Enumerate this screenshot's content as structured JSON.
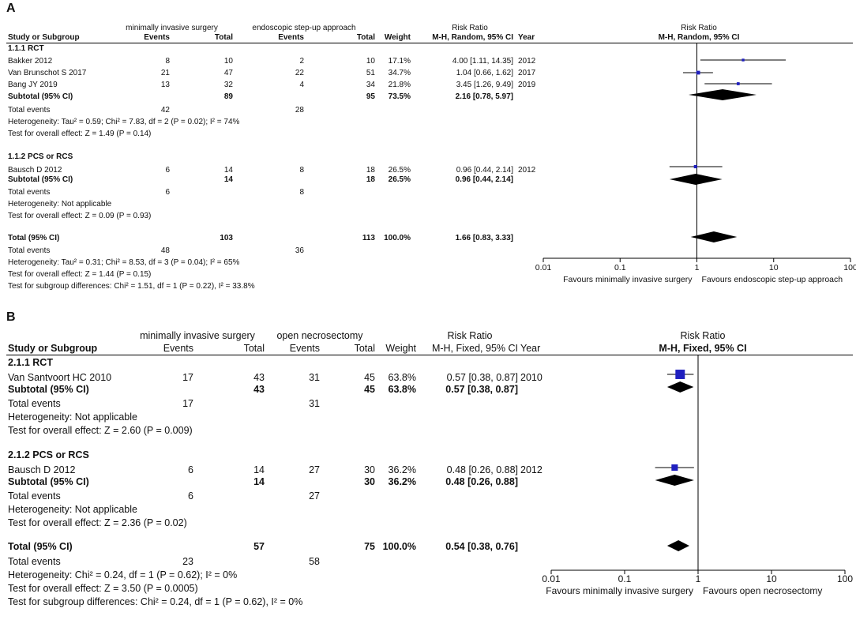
{
  "chart_data": [
    {
      "type": "forest",
      "panel_label": "A",
      "experimental_label": "minimally invasive surgery",
      "control_label": "endoscopic step-up approach",
      "columns": {
        "study": "Study or Subgroup",
        "events": "Events",
        "total": "Total",
        "weight": "Weight",
        "effect_title": "Risk Ratio",
        "effect_method": "M-H, Random, 95% CI",
        "year": "Year"
      },
      "plot_title": "Risk Ratio",
      "plot_method": "M-H, Random, 95% CI",
      "axis": {
        "scale": "log",
        "min": 0.01,
        "max": 100,
        "ticks": [
          "0.01",
          "0.1",
          "1",
          "10",
          "100"
        ]
      },
      "favours_left": "Favours minimally invasive surgery",
      "favours_right": "Favours endoscopic step-up approach",
      "subgroups": [
        {
          "name": "1.1.1 RCT",
          "studies": [
            {
              "name": "Bakker 2012",
              "e_events": "8",
              "e_total": "10",
              "c_events": "2",
              "c_total": "10",
              "weight": "17.1%",
              "ci_text": "4.00 [1.11, 14.35]",
              "year": "2012",
              "rr": 4.0,
              "lo": 1.11,
              "hi": 14.35
            },
            {
              "name": "Van Brunschot S 2017",
              "e_events": "21",
              "e_total": "47",
              "c_events": "22",
              "c_total": "51",
              "weight": "34.7%",
              "ci_text": "1.04 [0.66, 1.62]",
              "year": "2017",
              "rr": 1.04,
              "lo": 0.66,
              "hi": 1.62
            },
            {
              "name": "Bang JY 2019",
              "e_events": "13",
              "e_total": "32",
              "c_events": "4",
              "c_total": "34",
              "weight": "21.8%",
              "ci_text": "3.45 [1.26, 9.49]",
              "year": "2019",
              "rr": 3.45,
              "lo": 1.26,
              "hi": 9.49
            }
          ],
          "subtotal": {
            "label": "Subtotal (95% CI)",
            "e_total": "89",
            "c_total": "95",
            "weight": "73.5%",
            "ci_text": "2.16 [0.78, 5.97]",
            "rr": 2.16,
            "lo": 0.78,
            "hi": 5.97
          },
          "total_events": {
            "label": "Total events",
            "e": "42",
            "c": "28"
          },
          "heterogeneity": "Heterogeneity: Tau² = 0.59; Chi² = 7.83, df = 2 (P = 0.02); I² = 74%",
          "overall_effect": "Test for overall effect: Z = 1.49 (P = 0.14)"
        },
        {
          "name": "1.1.2 PCS or RCS",
          "studies": [
            {
              "name": "Bausch D  2012",
              "e_events": "6",
              "e_total": "14",
              "c_events": "8",
              "c_total": "18",
              "weight": "26.5%",
              "ci_text": "0.96 [0.44, 2.14]",
              "year": "2012",
              "rr": 0.96,
              "lo": 0.44,
              "hi": 2.14
            }
          ],
          "subtotal": {
            "label": "Subtotal (95% CI)",
            "e_total": "14",
            "c_total": "18",
            "weight": "26.5%",
            "ci_text": "0.96 [0.44, 2.14]",
            "rr": 0.96,
            "lo": 0.44,
            "hi": 2.14
          },
          "total_events": {
            "label": "Total events",
            "e": "6",
            "c": "8"
          },
          "heterogeneity": "Heterogeneity: Not applicable",
          "overall_effect": "Test for overall effect: Z = 0.09 (P = 0.93)"
        }
      ],
      "total": {
        "label": "Total (95% CI)",
        "e_total": "103",
        "c_total": "113",
        "weight": "100.0%",
        "ci_text": "1.66 [0.83, 3.33]",
        "rr": 1.66,
        "lo": 0.83,
        "hi": 3.33
      },
      "total_events": {
        "label": "Total events",
        "e": "48",
        "c": "36"
      },
      "heterogeneity": "Heterogeneity: Tau² = 0.31; Chi² = 8.53, df = 3 (P = 0.04); I² = 65%",
      "overall_effect": "Test for overall effect: Z = 1.44 (P = 0.15)",
      "subgroup_differences": "Test for subgroup differences: Chi² = 1.51, df = 1 (P = 0.22), I² = 33.8%"
    },
    {
      "type": "forest",
      "panel_label": "B",
      "experimental_label": "minimally invasive surgery",
      "control_label": "open necrosectomy",
      "columns": {
        "study": "Study or Subgroup",
        "events": "Events",
        "total": "Total",
        "weight": "Weight",
        "effect_title": "Risk Ratio",
        "effect_method": "M-H, Fixed, 95% CI",
        "year": "Year"
      },
      "plot_title": "Risk Ratio",
      "plot_method": "M-H, Fixed, 95% CI",
      "axis": {
        "scale": "log",
        "min": 0.01,
        "max": 100,
        "ticks": [
          "0.01",
          "0.1",
          "1",
          "10",
          "100"
        ]
      },
      "favours_left": "Favours minimally invasive surgery",
      "favours_right": "Favours open necrosectomy",
      "subgroups": [
        {
          "name": "2.1.1 RCT",
          "studies": [
            {
              "name": "Van Santvoort HC 2010",
              "e_events": "17",
              "e_total": "43",
              "c_events": "31",
              "c_total": "45",
              "weight": "63.8%",
              "ci_text": "0.57 [0.38, 0.87]",
              "year": "2010",
              "rr": 0.57,
              "lo": 0.38,
              "hi": 0.87
            }
          ],
          "subtotal": {
            "label": "Subtotal (95% CI)",
            "e_total": "43",
            "c_total": "45",
            "weight": "63.8%",
            "ci_text": "0.57 [0.38, 0.87]",
            "rr": 0.57,
            "lo": 0.38,
            "hi": 0.87
          },
          "total_events": {
            "label": "Total events",
            "e": "17",
            "c": "31"
          },
          "heterogeneity": "Heterogeneity: Not applicable",
          "overall_effect": "Test for overall effect: Z = 2.60 (P = 0.009)"
        },
        {
          "name": "2.1.2 PCS or RCS",
          "studies": [
            {
              "name": "Bausch D  2012",
              "e_events": "6",
              "e_total": "14",
              "c_events": "27",
              "c_total": "30",
              "weight": "36.2%",
              "ci_text": "0.48 [0.26, 0.88]",
              "year": "2012",
              "rr": 0.48,
              "lo": 0.26,
              "hi": 0.88
            }
          ],
          "subtotal": {
            "label": "Subtotal (95% CI)",
            "e_total": "14",
            "c_total": "30",
            "weight": "36.2%",
            "ci_text": "0.48 [0.26, 0.88]",
            "rr": 0.48,
            "lo": 0.26,
            "hi": 0.88
          },
          "total_events": {
            "label": "Total events",
            "e": "6",
            "c": "27"
          },
          "heterogeneity": "Heterogeneity: Not applicable",
          "overall_effect": "Test for overall effect: Z = 2.36 (P = 0.02)"
        }
      ],
      "total": {
        "label": "Total (95% CI)",
        "e_total": "57",
        "c_total": "75",
        "weight": "100.0%",
        "ci_text": "0.54 [0.38, 0.76]",
        "rr": 0.54,
        "lo": 0.38,
        "hi": 0.76
      },
      "total_events": {
        "label": "Total events",
        "e": "23",
        "c": "58"
      },
      "heterogeneity": "Heterogeneity: Chi² = 0.24, df = 1 (P = 0.62); I² = 0%",
      "overall_effect": "Test for overall effect: Z = 3.50 (P = 0.0005)",
      "subgroup_differences": "Test for subgroup differences: Chi² = 0.24, df = 1 (P = 0.62), I² = 0%"
    }
  ],
  "colors": {
    "marker": "#1f1fbf",
    "diamond": "#000000",
    "text": "#111111"
  }
}
